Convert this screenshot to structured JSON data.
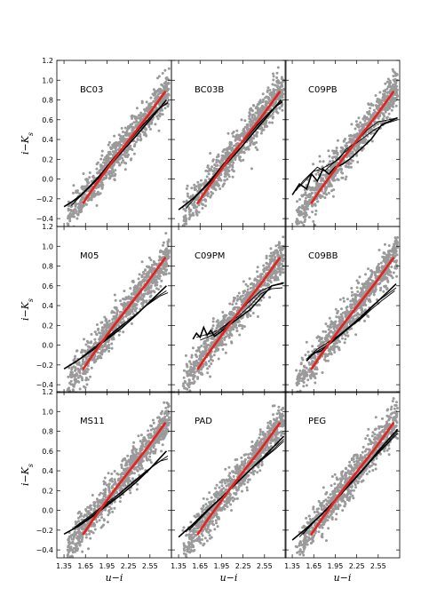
{
  "chart_data": {
    "type": "scatter",
    "title": "",
    "xlabel": "u−i",
    "ylabel": "i−K",
    "ylabel_sub": "s",
    "xlim": [
      1.25,
      2.85
    ],
    "ylim": [
      -0.48,
      1.2
    ],
    "xticks": [
      1.35,
      1.65,
      1.95,
      2.25,
      2.55
    ],
    "xtick_labels": [
      "1.35",
      "1.65",
      "1.95",
      "2.25",
      "2.55"
    ],
    "yticks": [
      -0.4,
      -0.2,
      0.0,
      0.2,
      0.4,
      0.6,
      0.8,
      1.0,
      1.2
    ],
    "ytick_labels": [
      "−0.4",
      "−0.2",
      "0.0",
      "0.2",
      "0.4",
      "0.6",
      "0.8",
      "1.0",
      "1.2"
    ],
    "grid": false,
    "colors": {
      "points": "#9a9a9a",
      "observed_fit": "#e8201e",
      "model_tracks": "#000000"
    },
    "observed_fit": {
      "x": [
        1.62,
        1.75,
        1.9,
        2.05,
        2.2,
        2.35,
        2.5,
        2.65,
        2.76
      ],
      "y": [
        -0.24,
        -0.1,
        0.05,
        0.2,
        0.34,
        0.48,
        0.62,
        0.77,
        0.88
      ]
    },
    "scatter_cloud": {
      "points_per_panel": 900,
      "x_range": [
        1.4,
        2.82
      ],
      "trend": {
        "slope": 0.93,
        "intercept": -1.7
      },
      "scatter_sigma": 0.09
    },
    "panels": [
      {
        "label": "BC03",
        "tracks": [
          {
            "x": [
              1.35,
              1.55,
              1.75,
              1.95,
              2.15,
              2.35,
              2.55,
              2.78
            ],
            "y": [
              -0.28,
              -0.19,
              -0.05,
              0.1,
              0.27,
              0.43,
              0.6,
              0.8
            ]
          },
          {
            "x": [
              1.4,
              1.6,
              1.8,
              2.0,
              2.2,
              2.4,
              2.6,
              2.8
            ],
            "y": [
              -0.26,
              -0.15,
              0.0,
              0.16,
              0.33,
              0.5,
              0.66,
              0.78
            ]
          },
          {
            "x": [
              1.45,
              1.65,
              1.85,
              2.05,
              2.25,
              2.45,
              2.65,
              2.8
            ],
            "y": [
              -0.27,
              -0.12,
              0.04,
              0.22,
              0.38,
              0.55,
              0.7,
              0.77
            ]
          }
        ]
      },
      {
        "label": "BC03B",
        "tracks": [
          {
            "x": [
              1.35,
              1.55,
              1.75,
              1.95,
              2.15,
              2.35,
              2.55,
              2.78
            ],
            "y": [
              -0.31,
              -0.2,
              -0.06,
              0.1,
              0.26,
              0.43,
              0.6,
              0.8
            ]
          },
          {
            "x": [
              1.4,
              1.6,
              1.8,
              2.0,
              2.2,
              2.4,
              2.6,
              2.8
            ],
            "y": [
              -0.29,
              -0.16,
              -0.01,
              0.16,
              0.33,
              0.5,
              0.66,
              0.79
            ]
          },
          {
            "x": [
              1.45,
              1.65,
              1.85,
              2.05,
              2.25,
              2.45,
              2.65,
              2.8
            ],
            "y": [
              -0.3,
              -0.13,
              0.04,
              0.22,
              0.39,
              0.55,
              0.7,
              0.78
            ]
          }
        ]
      },
      {
        "label": "C09PB",
        "tracks": [
          {
            "x": [
              1.35,
              1.45,
              1.55,
              1.62,
              1.7,
              1.78,
              1.86,
              1.95,
              2.05,
              2.15,
              2.3,
              2.45,
              2.6,
              2.82
            ],
            "y": [
              -0.16,
              -0.05,
              -0.1,
              0.05,
              -0.02,
              0.1,
              0.05,
              0.12,
              0.15,
              0.2,
              0.3,
              0.4,
              0.55,
              0.62
            ]
          },
          {
            "x": [
              1.4,
              1.5,
              1.6,
              1.7,
              1.8,
              1.9,
              2.0,
              2.1,
              2.25,
              2.4,
              2.55,
              2.7,
              2.82
            ],
            "y": [
              -0.12,
              -0.02,
              0.05,
              0.12,
              0.08,
              0.15,
              0.2,
              0.3,
              0.38,
              0.5,
              0.58,
              0.6,
              0.62
            ]
          },
          {
            "x": [
              1.45,
              1.55,
              1.65,
              1.75,
              1.85,
              1.95,
              2.05,
              2.2,
              2.35,
              2.5,
              2.65,
              2.82
            ],
            "y": [
              -0.08,
              0.0,
              0.08,
              0.1,
              0.14,
              0.18,
              0.25,
              0.34,
              0.42,
              0.5,
              0.56,
              0.6
            ]
          }
        ]
      },
      {
        "label": "M05",
        "tracks": [
          {
            "x": [
              1.35,
              1.55,
              1.75,
              1.95,
              2.15,
              2.35,
              2.55,
              2.78
            ],
            "y": [
              -0.24,
              -0.15,
              -0.05,
              0.06,
              0.17,
              0.3,
              0.44,
              0.6
            ]
          },
          {
            "x": [
              1.45,
              1.65,
              1.85,
              2.05,
              2.25,
              2.45,
              2.65,
              2.78
            ],
            "y": [
              -0.2,
              -0.1,
              0.01,
              0.13,
              0.25,
              0.37,
              0.49,
              0.55
            ]
          },
          {
            "x": [
              1.5,
              1.7,
              1.9,
              2.1,
              2.3,
              2.5,
              2.7,
              2.8
            ],
            "y": [
              -0.18,
              -0.06,
              0.05,
              0.17,
              0.28,
              0.4,
              0.5,
              0.53
            ]
          }
        ]
      },
      {
        "label": "C09PM",
        "tracks": [
          {
            "x": [
              1.55,
              1.6,
              1.65,
              1.7,
              1.75,
              1.8,
              1.85,
              1.95,
              2.05,
              2.2,
              2.35,
              2.5,
              2.65,
              2.82
            ],
            "y": [
              0.06,
              0.12,
              0.08,
              0.18,
              0.1,
              0.15,
              0.09,
              0.14,
              0.2,
              0.28,
              0.36,
              0.48,
              0.6,
              0.63
            ]
          },
          {
            "x": [
              1.6,
              1.7,
              1.8,
              1.9,
              2.0,
              2.1,
              2.2,
              2.35,
              2.5,
              2.65,
              2.8
            ],
            "y": [
              0.08,
              0.1,
              0.12,
              0.15,
              0.2,
              0.26,
              0.34,
              0.45,
              0.55,
              0.6,
              0.62
            ]
          },
          {
            "x": [
              1.65,
              1.75,
              1.85,
              1.95,
              2.05,
              2.2,
              2.35,
              2.5,
              2.65,
              2.8
            ],
            "y": [
              0.05,
              0.08,
              0.11,
              0.16,
              0.22,
              0.3,
              0.4,
              0.52,
              0.57,
              0.58
            ]
          }
        ]
      },
      {
        "label": "C09BB",
        "tracks": [
          {
            "x": [
              1.55,
              1.65,
              1.75,
              1.85,
              1.95,
              2.05,
              2.15,
              2.3,
              2.45,
              2.6,
              2.8
            ],
            "y": [
              -0.16,
              -0.08,
              -0.06,
              0.0,
              0.06,
              0.12,
              0.18,
              0.27,
              0.38,
              0.48,
              0.62
            ]
          },
          {
            "x": [
              1.6,
              1.7,
              1.8,
              1.9,
              2.0,
              2.1,
              2.2,
              2.35,
              2.5,
              2.65,
              2.8
            ],
            "y": [
              -0.12,
              -0.06,
              -0.02,
              0.04,
              0.1,
              0.16,
              0.22,
              0.32,
              0.42,
              0.5,
              0.58
            ]
          },
          {
            "x": [
              1.55,
              1.7,
              1.85,
              2.0,
              2.15,
              2.3,
              2.45,
              2.6,
              2.78
            ],
            "y": [
              -0.14,
              -0.04,
              0.03,
              0.1,
              0.18,
              0.26,
              0.36,
              0.45,
              0.55
            ]
          }
        ]
      },
      {
        "label": "MS11",
        "tracks": [
          {
            "x": [
              1.35,
              1.55,
              1.75,
              1.95,
              2.15,
              2.35,
              2.55,
              2.78
            ],
            "y": [
              -0.24,
              -0.16,
              -0.06,
              0.05,
              0.16,
              0.28,
              0.42,
              0.6
            ]
          },
          {
            "x": [
              1.45,
              1.65,
              1.85,
              2.05,
              2.25,
              2.45,
              2.65,
              2.8
            ],
            "y": [
              -0.2,
              -0.1,
              0.01,
              0.12,
              0.24,
              0.36,
              0.48,
              0.55
            ]
          },
          {
            "x": [
              1.5,
              1.7,
              1.9,
              2.1,
              2.3,
              2.5,
              2.7,
              2.8
            ],
            "y": [
              -0.17,
              -0.06,
              0.05,
              0.16,
              0.28,
              0.4,
              0.5,
              0.52
            ]
          }
        ]
      },
      {
        "label": "PAD",
        "tracks": [
          {
            "x": [
              1.35,
              1.55,
              1.75,
              1.95,
              2.15,
              2.35,
              2.55,
              2.82
            ],
            "y": [
              -0.27,
              -0.14,
              0.0,
              0.13,
              0.27,
              0.41,
              0.55,
              0.75
            ]
          },
          {
            "x": [
              1.45,
              1.65,
              1.85,
              2.05,
              2.25,
              2.45,
              2.65,
              2.82
            ],
            "y": [
              -0.22,
              -0.08,
              0.06,
              0.2,
              0.34,
              0.48,
              0.6,
              0.72
            ]
          },
          {
            "x": [
              1.5,
              1.7,
              1.9,
              2.1,
              2.3,
              2.5,
              2.7,
              2.82
            ],
            "y": [
              -0.2,
              -0.05,
              0.1,
              0.24,
              0.38,
              0.5,
              0.62,
              0.7
            ]
          }
        ]
      },
      {
        "label": "PEG",
        "tracks": [
          {
            "x": [
              1.35,
              1.55,
              1.75,
              1.95,
              2.15,
              2.35,
              2.55,
              2.82
            ],
            "y": [
              -0.3,
              -0.18,
              -0.05,
              0.1,
              0.26,
              0.42,
              0.6,
              0.82
            ]
          },
          {
            "x": [
              1.45,
              1.65,
              1.85,
              2.05,
              2.25,
              2.45,
              2.65,
              2.82
            ],
            "y": [
              -0.27,
              -0.12,
              0.02,
              0.18,
              0.34,
              0.5,
              0.65,
              0.78
            ]
          },
          {
            "x": [
              1.5,
              1.7,
              1.9,
              2.1,
              2.3,
              2.5,
              2.7,
              2.82
            ],
            "y": [
              -0.24,
              -0.08,
              0.07,
              0.23,
              0.39,
              0.55,
              0.7,
              0.8
            ]
          }
        ]
      }
    ]
  }
}
